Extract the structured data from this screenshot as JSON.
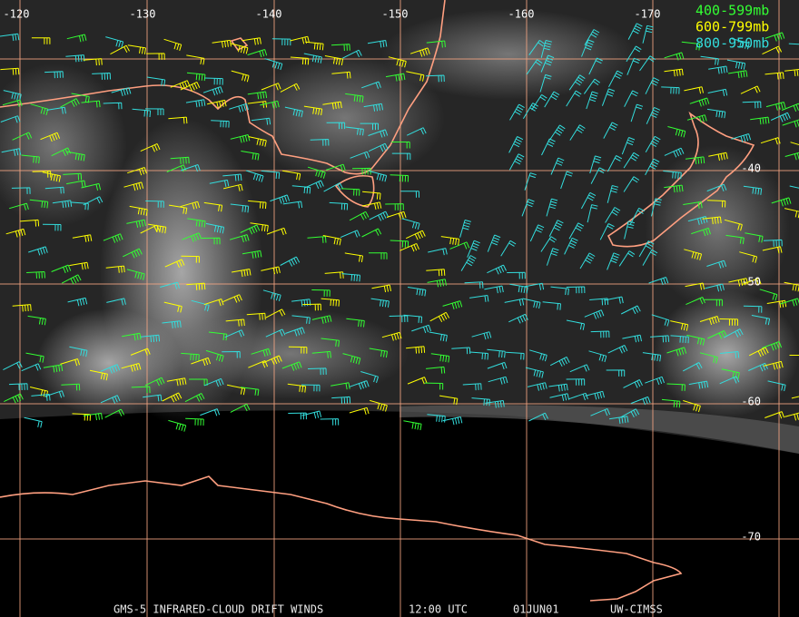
{
  "map": {
    "longitude_labels": [
      "-120",
      "-130",
      "-140",
      "-150",
      "-160",
      "-170"
    ],
    "latitude_labels": [
      "-40",
      "-50",
      "-60",
      "-70"
    ],
    "legend": [
      {
        "label": "400-599mb",
        "color": "#33ff33"
      },
      {
        "label": "600-799mb",
        "color": "#ffff00"
      },
      {
        "label": "800-950mb",
        "color": "#33dddd"
      }
    ],
    "footer": [
      "GMS-5 INFRARED-CLOUD DRIFT WINDS",
      "12:00 UTC",
      "01JUN01",
      "UW-CIMSS"
    ]
  }
}
